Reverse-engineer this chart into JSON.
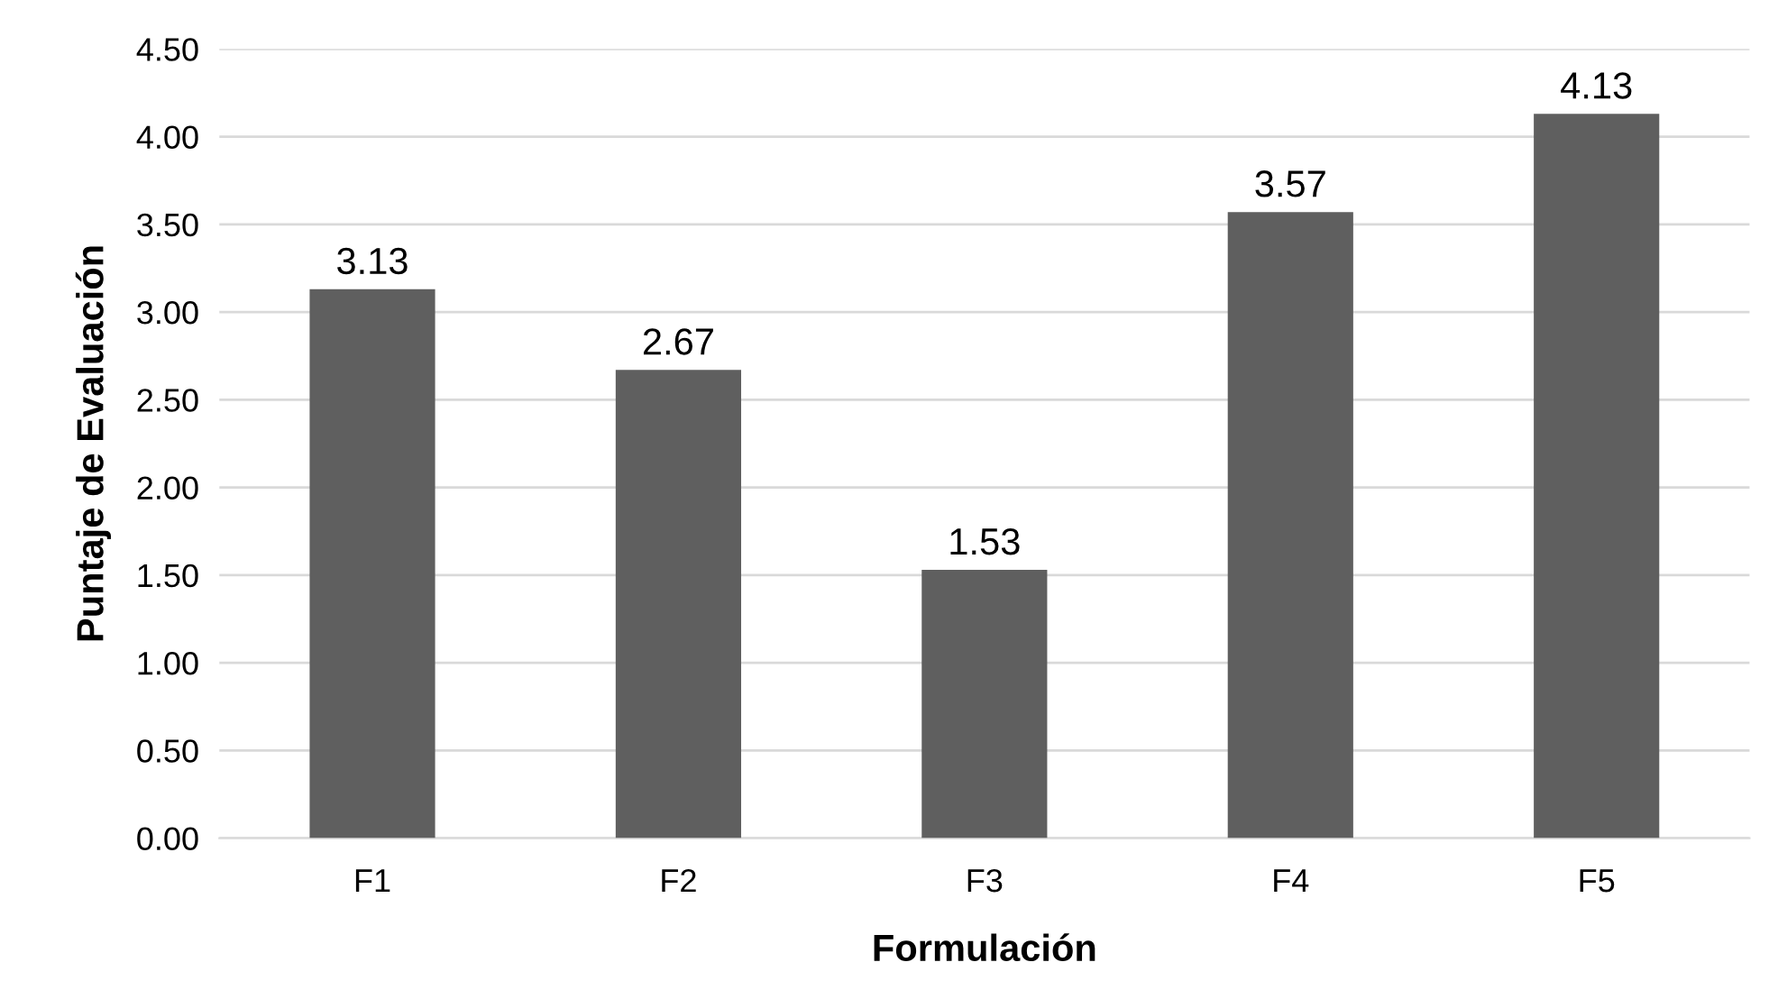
{
  "chart_data": {
    "type": "bar",
    "xlabel": "Formulación",
    "ylabel": "Puntaje de Evaluación",
    "categories": [
      "F1",
      "F2",
      "F3",
      "F4",
      "F5"
    ],
    "values": [
      3.13,
      2.67,
      1.53,
      3.57,
      4.13
    ],
    "color": "#5f5f5f",
    "ylim": [
      0,
      4.5
    ],
    "yticks": [
      {
        "value": 0,
        "label": "0.00"
      },
      {
        "value": 0.5,
        "label": "0.50"
      },
      {
        "value": 1,
        "label": "1.00"
      },
      {
        "value": 1.5,
        "label": "1.50"
      },
      {
        "value": 2,
        "label": "2.00"
      },
      {
        "value": 2.5,
        "label": "2.50"
      },
      {
        "value": 3,
        "label": "3.00"
      },
      {
        "value": 3.5,
        "label": "3.50"
      },
      {
        "value": 4,
        "label": "4.00"
      },
      {
        "value": 4.5,
        "label": "4.50"
      }
    ],
    "grid": "y",
    "data_labels": true
  }
}
